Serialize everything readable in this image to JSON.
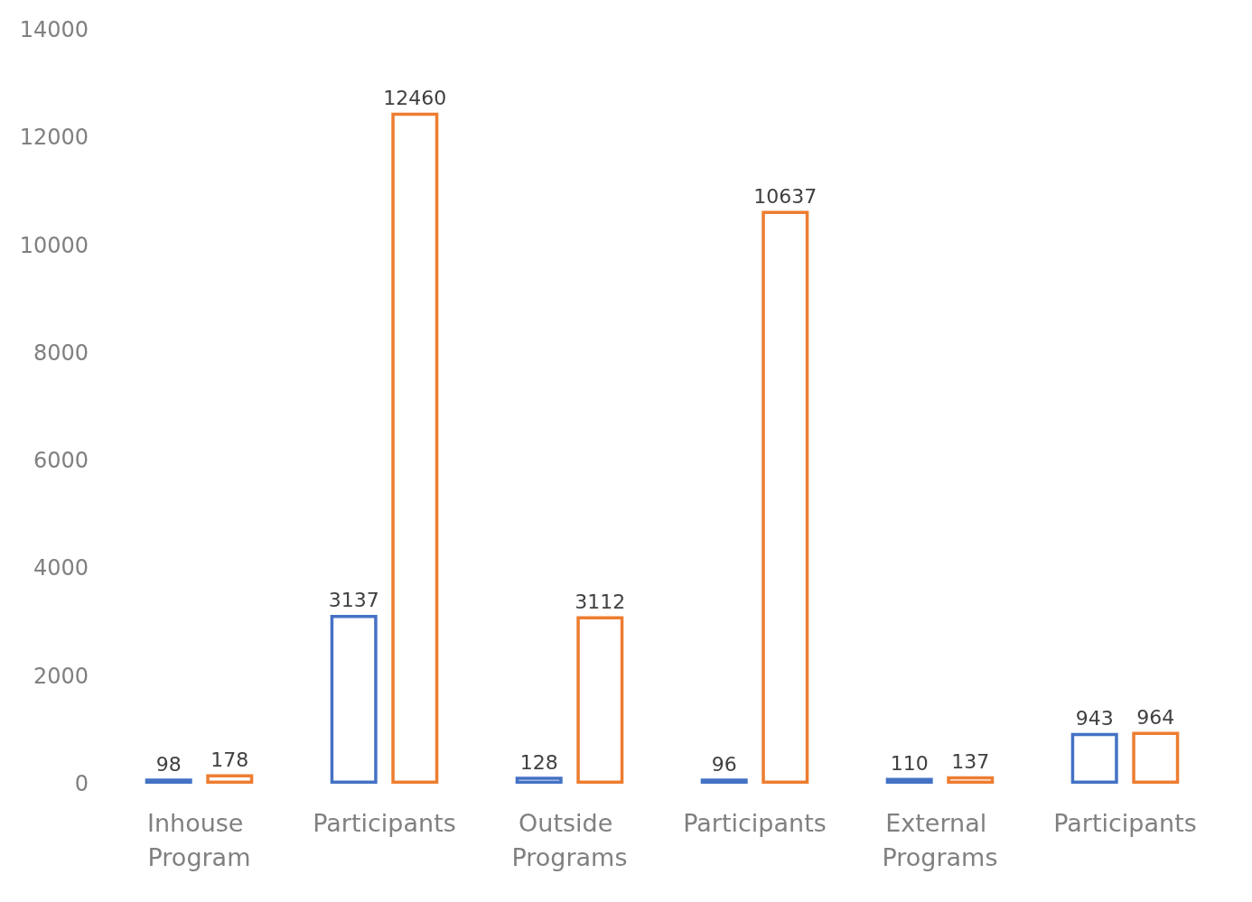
{
  "chart_data": {
    "type": "bar",
    "categories": [
      "Inhouse Program",
      "Participants",
      "Outside Programs",
      "Participants",
      "External Programs",
      "Participants"
    ],
    "series": [
      {
        "color": "#4472c4",
        "values": [
          98,
          3137,
          128,
          96,
          110,
          943
        ]
      },
      {
        "color": "#ed7d31",
        "values": [
          178,
          12460,
          3112,
          10637,
          137,
          964
        ]
      }
    ],
    "ylim": [
      0,
      14000
    ],
    "yticks": [
      0,
      2000,
      4000,
      6000,
      8000,
      10000,
      12000,
      14000
    ],
    "grid": false,
    "data_labels": true
  }
}
